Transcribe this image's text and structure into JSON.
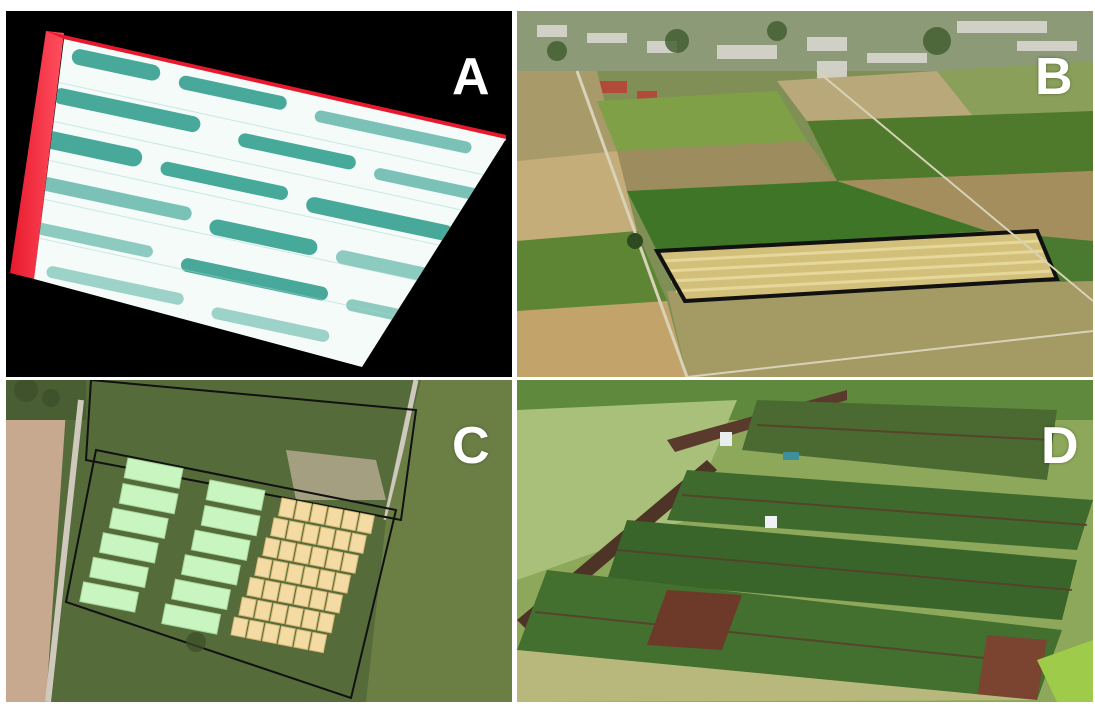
{
  "panels": [
    {
      "label": "A"
    },
    {
      "label": "B"
    },
    {
      "label": "C"
    },
    {
      "label": "D"
    }
  ],
  "colors": {
    "ndvi_green": "#2a9b8a",
    "ndvi_white": "#ffffff",
    "ndvi_edge": "#e8192c",
    "plot_green": "#c9f5c0",
    "plot_yellow": "#f3dba3",
    "outline": "#111111"
  }
}
